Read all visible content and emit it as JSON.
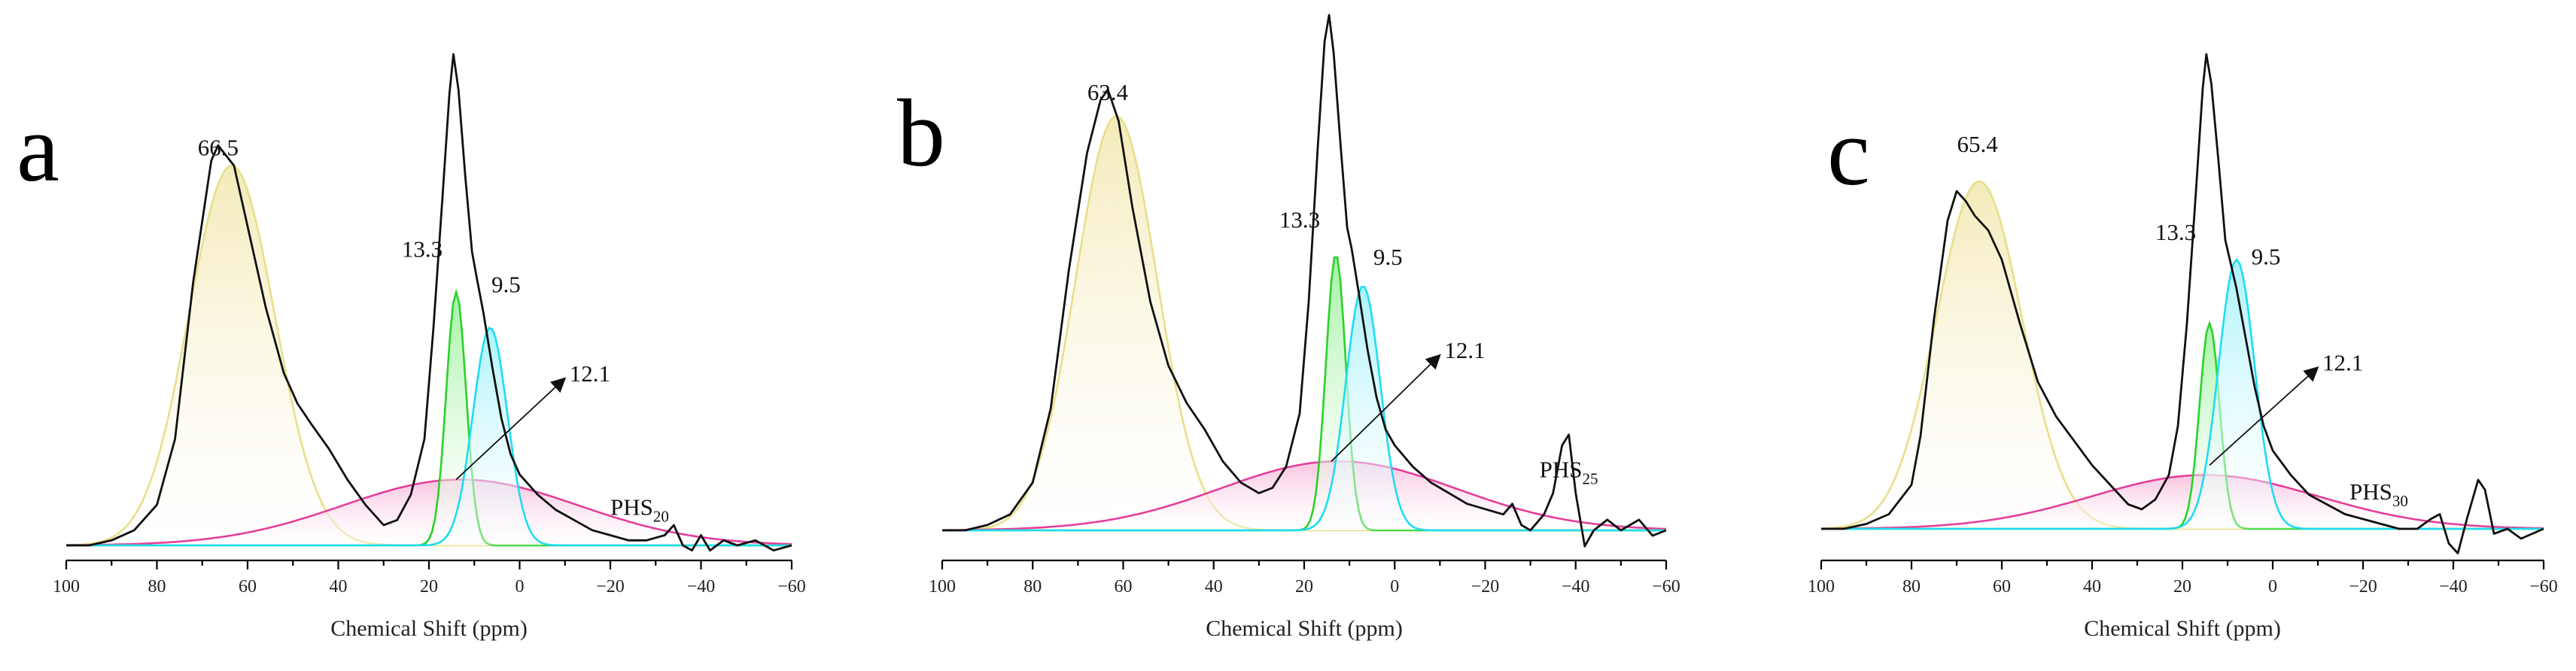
{
  "chart_data": [
    {
      "type": "line",
      "panel_label": "a",
      "sample_name": "PHS",
      "sample_sub": "20",
      "xlabel": "Chemical Shift (ppm)",
      "xlim": [
        100,
        -60
      ],
      "xticks": [
        100,
        80,
        60,
        40,
        20,
        0,
        -20,
        -40,
        -60
      ],
      "tick_labels": [
        "100",
        "80",
        "60",
        "40",
        "20",
        "0",
        "−20",
        "−40",
        "−60"
      ],
      "ylim": [
        0,
        1
      ],
      "baseline": 0.03,
      "peak_labels": [
        {
          "text": "66.5",
          "x": 66.5,
          "y": 0.8
        },
        {
          "text": "13.3",
          "x": 21.5,
          "y": 0.6
        },
        {
          "text": "9.5",
          "x": 3.0,
          "y": 0.53
        }
      ],
      "arrow": {
        "text": "12.1",
        "from": [
          14,
          0.16
        ],
        "to": [
          -10,
          0.36
        ]
      },
      "sample_label_pos": [
        -20,
        0.09
      ],
      "components": [
        {
          "name": "yellow",
          "center": 63.5,
          "width": 9.5,
          "height": 0.75,
          "color": "#e9df8a",
          "fill": "#f3eab5"
        },
        {
          "name": "magenta",
          "center": 13.0,
          "width": 26.0,
          "height": 0.13,
          "color": "#e43f9b",
          "fill": "#f8bfdd"
        },
        {
          "name": "green",
          "center": 14.0,
          "width": 2.2,
          "height": 0.5,
          "color": "#2bd12b",
          "fill": "#9ff29f"
        },
        {
          "name": "cyan",
          "center": 6.5,
          "width": 3.8,
          "height": 0.43,
          "color": "#1fdcf2",
          "fill": "#a6f2fb"
        }
      ],
      "spectrum": [
        [
          100,
          0.03
        ],
        [
          95,
          0.03
        ],
        [
          90,
          0.04
        ],
        [
          85,
          0.06
        ],
        [
          80,
          0.11
        ],
        [
          76,
          0.24
        ],
        [
          72,
          0.55
        ],
        [
          68,
          0.79
        ],
        [
          66.5,
          0.82
        ],
        [
          63,
          0.78
        ],
        [
          60,
          0.66
        ],
        [
          56,
          0.5
        ],
        [
          52,
          0.37
        ],
        [
          49,
          0.31
        ],
        [
          46,
          0.27
        ],
        [
          42,
          0.22
        ],
        [
          38,
          0.16
        ],
        [
          34,
          0.11
        ],
        [
          30,
          0.07
        ],
        [
          27,
          0.08
        ],
        [
          24,
          0.13
        ],
        [
          21,
          0.24
        ],
        [
          19,
          0.46
        ],
        [
          17,
          0.72
        ],
        [
          15.5,
          0.92
        ],
        [
          14.6,
          1.0
        ],
        [
          13.5,
          0.93
        ],
        [
          12,
          0.76
        ],
        [
          10.5,
          0.61
        ],
        [
          9.5,
          0.56
        ],
        [
          8,
          0.49
        ],
        [
          6,
          0.38
        ],
        [
          4,
          0.28
        ],
        [
          2,
          0.21
        ],
        [
          0,
          0.17
        ],
        [
          -4,
          0.13
        ],
        [
          -8,
          0.1
        ],
        [
          -12,
          0.08
        ],
        [
          -16,
          0.06
        ],
        [
          -20,
          0.05
        ],
        [
          -24,
          0.04
        ],
        [
          -28,
          0.04
        ],
        [
          -32,
          0.05
        ],
        [
          -34,
          0.07
        ],
        [
          -36,
          0.03
        ],
        [
          -38,
          0.02
        ],
        [
          -40,
          0.05
        ],
        [
          -42,
          0.02
        ],
        [
          -45,
          0.04
        ],
        [
          -48,
          0.03
        ],
        [
          -52,
          0.04
        ],
        [
          -56,
          0.02
        ],
        [
          -60,
          0.03
        ]
      ]
    },
    {
      "type": "line",
      "panel_label": "b",
      "sample_name": "PHS",
      "sample_sub": "25",
      "xlabel": "Chemical Shift (ppm)",
      "xlim": [
        100,
        -60
      ],
      "xticks": [
        100,
        80,
        60,
        40,
        20,
        0,
        -20,
        -40,
        -60
      ],
      "tick_labels": [
        "100",
        "80",
        "60",
        "40",
        "20",
        "0",
        "−20",
        "−40",
        "−60"
      ],
      "ylim": [
        0,
        1
      ],
      "baseline": 0.03,
      "peak_labels": [
        {
          "text": "63.4",
          "x": 63.4,
          "y": 0.84
        },
        {
          "text": "13.3",
          "x": 21.0,
          "y": 0.6
        },
        {
          "text": "9.5",
          "x": 1.5,
          "y": 0.53
        }
      ],
      "arrow": {
        "text": "12.1",
        "from": [
          14,
          0.16
        ],
        "to": [
          -10,
          0.36
        ]
      },
      "sample_label_pos": [
        -32,
        0.13
      ],
      "components": [
        {
          "name": "yellow",
          "center": 61.5,
          "width": 9.0,
          "height": 0.78,
          "color": "#e9df8a",
          "fill": "#f3eab5"
        },
        {
          "name": "magenta",
          "center": 12.5,
          "width": 26.0,
          "height": 0.13,
          "color": "#e43f9b",
          "fill": "#f8bfdd"
        },
        {
          "name": "green",
          "center": 13.0,
          "width": 2.2,
          "height": 0.52,
          "color": "#2bd12b",
          "fill": "#9ff29f"
        },
        {
          "name": "cyan",
          "center": 7.0,
          "width": 3.8,
          "height": 0.46,
          "color": "#1fdcf2",
          "fill": "#a6f2fb"
        }
      ],
      "spectrum": [
        [
          100,
          0.03
        ],
        [
          95,
          0.03
        ],
        [
          90,
          0.04
        ],
        [
          85,
          0.06
        ],
        [
          80,
          0.12
        ],
        [
          76,
          0.26
        ],
        [
          72,
          0.52
        ],
        [
          68,
          0.74
        ],
        [
          65,
          0.84
        ],
        [
          63.4,
          0.86
        ],
        [
          61,
          0.8
        ],
        [
          58,
          0.64
        ],
        [
          54,
          0.46
        ],
        [
          50,
          0.34
        ],
        [
          46,
          0.27
        ],
        [
          42,
          0.22
        ],
        [
          38,
          0.16
        ],
        [
          34,
          0.12
        ],
        [
          30,
          0.1
        ],
        [
          27,
          0.11
        ],
        [
          24,
          0.15
        ],
        [
          21,
          0.25
        ],
        [
          19,
          0.46
        ],
        [
          17,
          0.75
        ],
        [
          15.5,
          0.95
        ],
        [
          14.5,
          1.0
        ],
        [
          13.5,
          0.93
        ],
        [
          12,
          0.76
        ],
        [
          10.5,
          0.6
        ],
        [
          9.5,
          0.56
        ],
        [
          8,
          0.48
        ],
        [
          6,
          0.37
        ],
        [
          4,
          0.28
        ],
        [
          2,
          0.22
        ],
        [
          0,
          0.19
        ],
        [
          -4,
          0.15
        ],
        [
          -8,
          0.12
        ],
        [
          -12,
          0.1
        ],
        [
          -16,
          0.08
        ],
        [
          -20,
          0.07
        ],
        [
          -24,
          0.06
        ],
        [
          -26,
          0.08
        ],
        [
          -28,
          0.04
        ],
        [
          -30,
          0.03
        ],
        [
          -33,
          0.06
        ],
        [
          -35,
          0.1
        ],
        [
          -37,
          0.19
        ],
        [
          -38.5,
          0.21
        ],
        [
          -40,
          0.1
        ],
        [
          -42,
          0.0
        ],
        [
          -44,
          0.03
        ],
        [
          -47,
          0.05
        ],
        [
          -50,
          0.03
        ],
        [
          -54,
          0.05
        ],
        [
          -57,
          0.02
        ],
        [
          -60,
          0.03
        ]
      ]
    },
    {
      "type": "line",
      "panel_label": "c",
      "sample_name": "PHS",
      "sample_sub": "30",
      "xlabel": "Chemical Shift (ppm)",
      "xlim": [
        100,
        -60
      ],
      "xticks": [
        100,
        80,
        60,
        40,
        20,
        0,
        -20,
        -40,
        -60
      ],
      "tick_labels": [
        "100",
        "80",
        "60",
        "40",
        "20",
        "0",
        "−20",
        "−40",
        "−60"
      ],
      "ylim": [
        0,
        1
      ],
      "baseline": 0.03,
      "peak_labels": [
        {
          "text": "65.4",
          "x": 65.4,
          "y": 0.8
        },
        {
          "text": "13.3",
          "x": 21.5,
          "y": 0.62
        },
        {
          "text": "9.5",
          "x": 1.5,
          "y": 0.57
        }
      ],
      "arrow": {
        "text": "12.1",
        "from": [
          14,
          0.16
        ],
        "to": [
          -10,
          0.36
        ]
      },
      "sample_label_pos": [
        -17,
        0.09
      ],
      "components": [
        {
          "name": "yellow",
          "center": 65.0,
          "width": 9.5,
          "height": 0.71,
          "color": "#e9df8a",
          "fill": "#f3eab5"
        },
        {
          "name": "magenta",
          "center": 15.0,
          "width": 25.0,
          "height": 0.11,
          "color": "#e43f9b",
          "fill": "#f8bfdd"
        },
        {
          "name": "green",
          "center": 14.0,
          "width": 2.2,
          "height": 0.42,
          "color": "#2bd12b",
          "fill": "#9ff29f"
        },
        {
          "name": "cyan",
          "center": 8.0,
          "width": 4.0,
          "height": 0.55,
          "color": "#1fdcf2",
          "fill": "#a6f2fb"
        }
      ],
      "spectrum": [
        [
          100,
          0.03
        ],
        [
          95,
          0.03
        ],
        [
          90,
          0.04
        ],
        [
          85,
          0.06
        ],
        [
          80,
          0.12
        ],
        [
          78,
          0.22
        ],
        [
          75,
          0.46
        ],
        [
          72,
          0.66
        ],
        [
          70,
          0.72
        ],
        [
          68,
          0.7
        ],
        [
          66,
          0.67
        ],
        [
          63,
          0.64
        ],
        [
          60,
          0.58
        ],
        [
          56,
          0.45
        ],
        [
          52,
          0.33
        ],
        [
          48,
          0.26
        ],
        [
          44,
          0.21
        ],
        [
          40,
          0.16
        ],
        [
          36,
          0.12
        ],
        [
          32,
          0.08
        ],
        [
          29,
          0.07
        ],
        [
          26,
          0.09
        ],
        [
          23,
          0.14
        ],
        [
          21,
          0.24
        ],
        [
          19,
          0.45
        ],
        [
          17,
          0.72
        ],
        [
          15.5,
          0.93
        ],
        [
          14.7,
          1.0
        ],
        [
          13.6,
          0.94
        ],
        [
          12,
          0.78
        ],
        [
          10.5,
          0.62
        ],
        [
          9.5,
          0.58
        ],
        [
          8,
          0.52
        ],
        [
          6,
          0.42
        ],
        [
          4,
          0.32
        ],
        [
          2,
          0.24
        ],
        [
          0,
          0.19
        ],
        [
          -4,
          0.14
        ],
        [
          -8,
          0.1
        ],
        [
          -12,
          0.08
        ],
        [
          -16,
          0.06
        ],
        [
          -20,
          0.05
        ],
        [
          -24,
          0.04
        ],
        [
          -28,
          0.03
        ],
        [
          -32,
          0.03
        ],
        [
          -35,
          0.05
        ],
        [
          -37,
          0.06
        ],
        [
          -39,
          0.0
        ],
        [
          -41,
          -0.02
        ],
        [
          -43,
          0.05
        ],
        [
          -45.5,
          0.13
        ],
        [
          -47,
          0.11
        ],
        [
          -49,
          0.02
        ],
        [
          -52,
          0.03
        ],
        [
          -55,
          0.01
        ],
        [
          -60,
          0.03
        ]
      ]
    }
  ]
}
